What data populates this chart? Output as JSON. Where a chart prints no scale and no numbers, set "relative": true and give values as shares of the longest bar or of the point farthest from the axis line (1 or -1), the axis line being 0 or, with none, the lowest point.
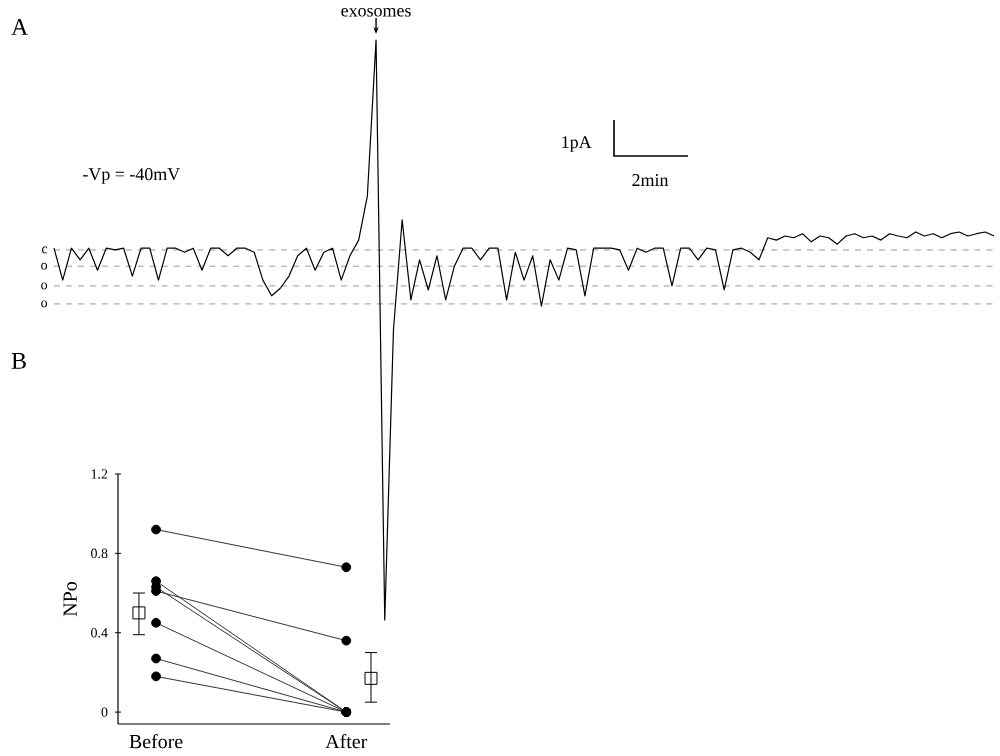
{
  "chart_data": [
    {
      "type": "line",
      "title": "A",
      "relative": true,
      "color": "#000000",
      "tick_labels": false,
      "categories": [
        null,
        null,
        null,
        null,
        null,
        null,
        null,
        null,
        null,
        null,
        null,
        null,
        null,
        null,
        null,
        null,
        null,
        null,
        null,
        null,
        null,
        null,
        null,
        null,
        null,
        null,
        null,
        null,
        null,
        null,
        null,
        null,
        null,
        null,
        null,
        null,
        null,
        null,
        null,
        null,
        null,
        null,
        null,
        null,
        null,
        null,
        null,
        null,
        null,
        null,
        null,
        null,
        null,
        null,
        null,
        null,
        null,
        null,
        null,
        null,
        null,
        null,
        null,
        null,
        null,
        null,
        null,
        null,
        null,
        null,
        null,
        null,
        null,
        null,
        null,
        null,
        null,
        null,
        null,
        null,
        null,
        null,
        null,
        null,
        null,
        null,
        null,
        null,
        null,
        null,
        null,
        null,
        null,
        null,
        null,
        null,
        null,
        null,
        null,
        null,
        null,
        null,
        null,
        null,
        null,
        null,
        null,
        null,
        null
      ],
      "values": [
        0.641,
        0.586,
        0.641,
        0.621,
        0.641,
        0.603,
        0.641,
        0.638,
        0.641,
        0.593,
        0.641,
        0.641,
        0.586,
        0.641,
        0.641,
        0.634,
        0.641,
        0.603,
        0.641,
        0.641,
        0.628,
        0.641,
        0.641,
        0.634,
        0.586,
        0.559,
        0.572,
        0.593,
        0.628,
        0.641,
        0.603,
        0.634,
        0.641,
        0.586,
        0.628,
        0.655,
        0.731,
        1,
        0,
        0.5,
        0.69,
        0.552,
        0.621,
        0.569,
        0.628,
        0.552,
        0.61,
        0.641,
        0.641,
        0.621,
        0.641,
        0.641,
        0.552,
        0.634,
        0.586,
        0.628,
        0.541,
        0.621,
        0.586,
        0.641,
        0.638,
        0.559,
        0.641,
        0.641,
        0.641,
        0.638,
        0.603,
        0.641,
        0.634,
        0.641,
        0.641,
        0.576,
        0.641,
        0.641,
        0.621,
        0.641,
        0.638,
        0.569,
        0.638,
        0.641,
        0.634,
        0.621,
        0.659,
        0.655,
        0.662,
        0.659,
        0.666,
        0.652,
        0.662,
        0.659,
        0.648,
        0.662,
        0.666,
        0.659,
        0.662,
        0.655,
        0.666,
        0.662,
        0.659,
        0.669,
        0.662,
        0.666,
        0.659,
        0.666,
        0.669,
        0.662,
        0.666,
        0.669,
        0.662
      ],
      "ref_lines": [
        {
          "axis": "y",
          "value": 0.638,
          "label": "c",
          "color": "#999999",
          "line_style": "dashed"
        },
        {
          "axis": "y",
          "value": 0.61,
          "label": "o",
          "color": "#999999",
          "line_style": "dashed"
        },
        {
          "axis": "y",
          "value": 0.576,
          "label": "o",
          "color": "#999999",
          "line_style": "dashed"
        },
        {
          "axis": "y",
          "value": 0.545,
          "label": "o",
          "color": "#999999",
          "line_style": "dashed"
        }
      ],
      "annotations": [
        "exosomes",
        "-Vp  = -40mV",
        "1pA",
        "2min"
      ]
    },
    {
      "type": "line",
      "title": "B",
      "categories": [
        "Before",
        "After"
      ],
      "ylabel": "NPo",
      "ylim": [
        -0.06,
        1.2
      ],
      "yticks": [
        0,
        0.4,
        0.8,
        1.2
      ],
      "marker": "circle",
      "series": [
        {
          "color": "#333333",
          "values": [
            0.92,
            0.73
          ]
        },
        {
          "color": "#333333",
          "values": [
            0.66,
            0
          ]
        },
        {
          "color": "#333333",
          "values": [
            0.63,
            0
          ]
        },
        {
          "color": "#333333",
          "values": [
            0.61,
            0.36
          ]
        },
        {
          "color": "#333333",
          "values": [
            0.45,
            0
          ]
        },
        {
          "color": "#333333",
          "values": [
            0.27,
            0
          ]
        },
        {
          "color": "#333333",
          "values": [
            0.18,
            0
          ]
        },
        {
          "type": "scatter",
          "marker": "square",
          "color": "#000000",
          "x": [
            "Before",
            "After"
          ],
          "values": [
            0.5,
            0.17
          ],
          "errors": [
            [
              0.39,
              0.6
            ],
            [
              0.05,
              0.3
            ]
          ]
        }
      ]
    }
  ]
}
